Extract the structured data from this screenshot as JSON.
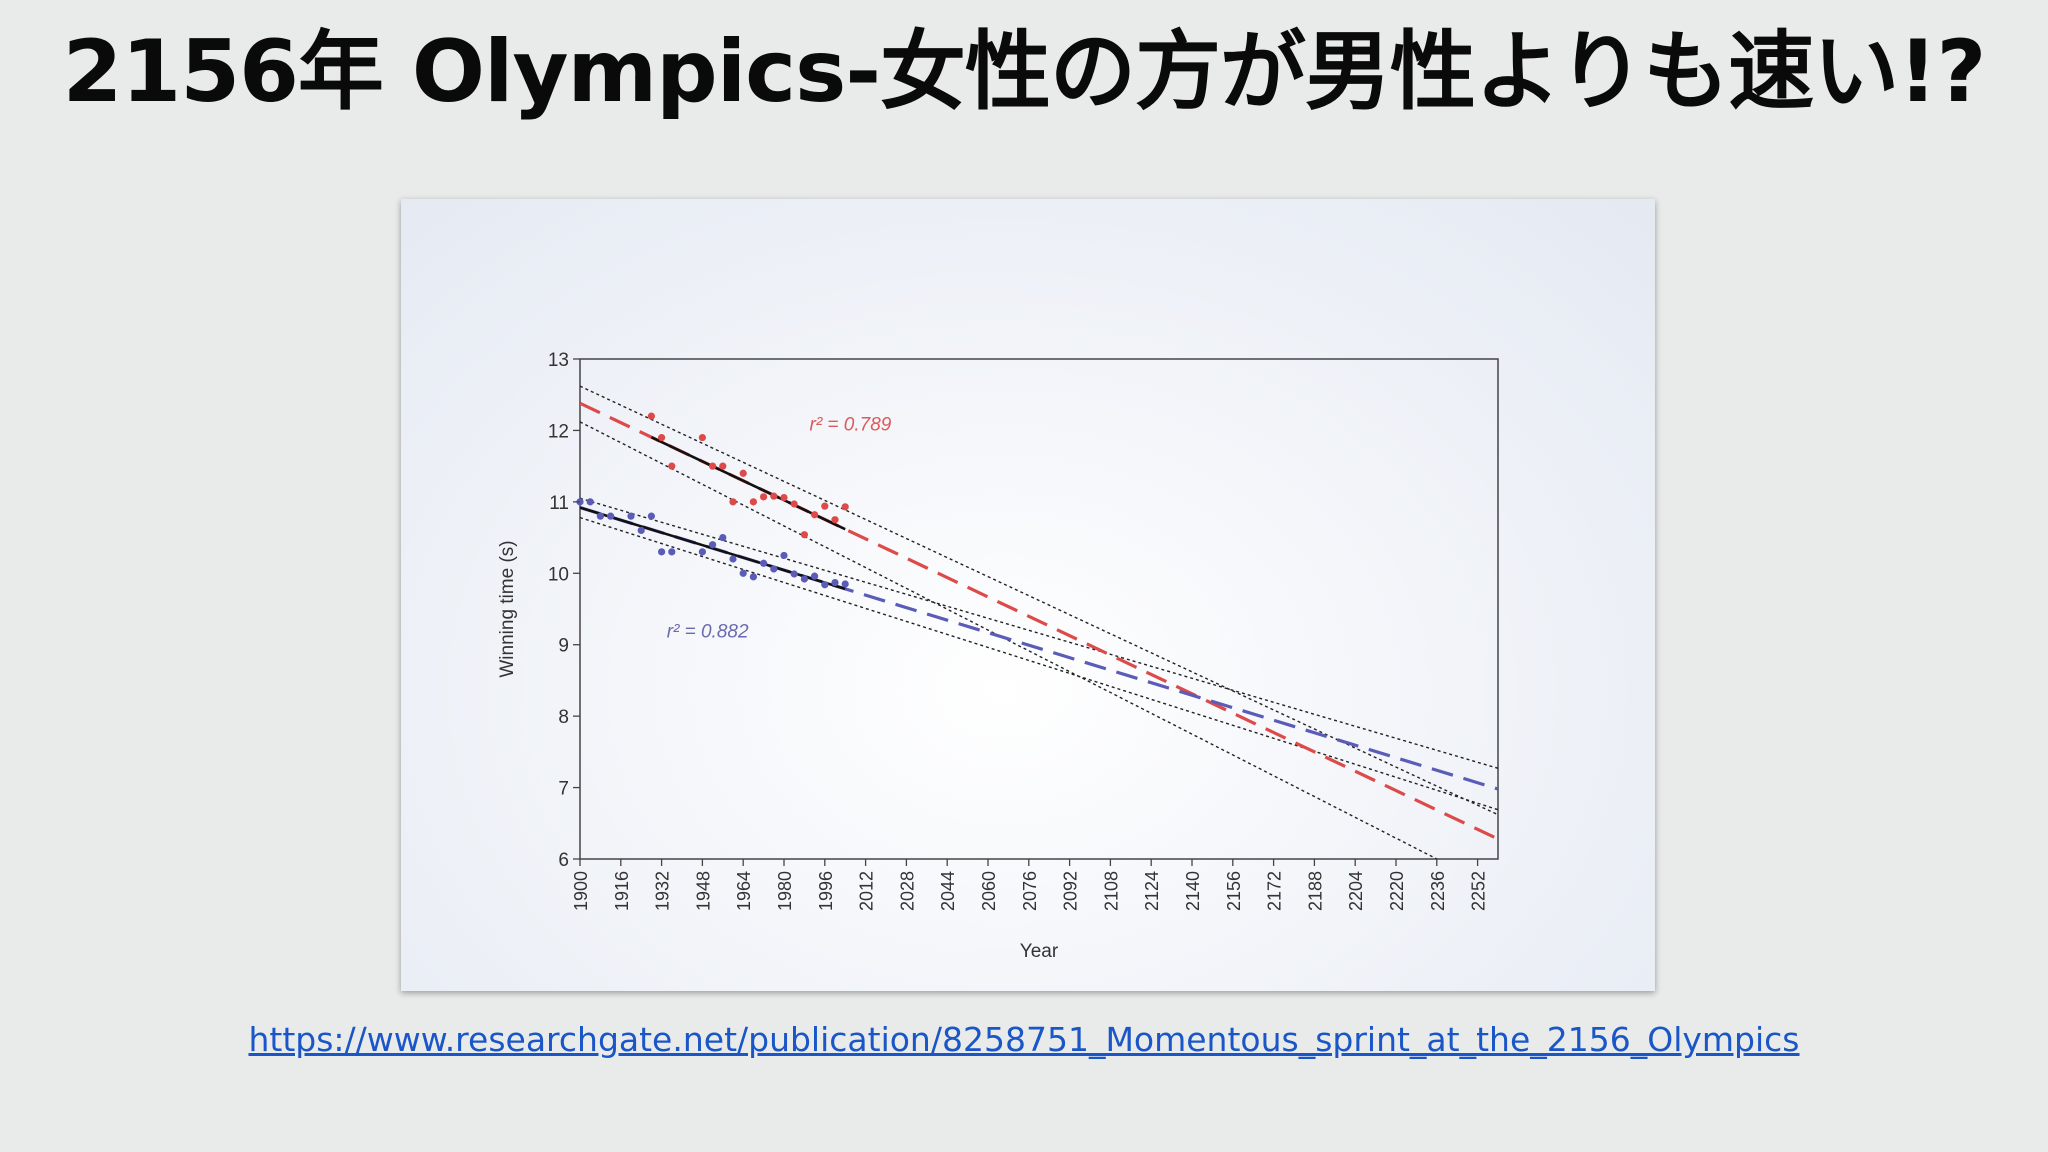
{
  "slide": {
    "title": "2156年 Olympics-女性の方が男性よりも速い!?",
    "source_link": "https://www.researchgate.net/publication/8258751_Momentous_sprint_at_the_2156_Olympics"
  },
  "colors": {
    "men": "#5b5bb8",
    "women": "#dd4a4a",
    "men_label": "#6a6ab0",
    "women_label": "#dd5a5a"
  },
  "chart_data": {
    "type": "scatter",
    "xlabel": "Year",
    "ylabel": "Winning time (s)",
    "xlim": [
      1900,
      2260
    ],
    "ylim": [
      6,
      13
    ],
    "xticks": [
      1900,
      1916,
      1932,
      1948,
      1964,
      1980,
      1996,
      2012,
      2028,
      2044,
      2060,
      2076,
      2092,
      2108,
      2124,
      2140,
      2156,
      2172,
      2188,
      2204,
      2220,
      2236,
      2252
    ],
    "yticks": [
      6,
      7,
      8,
      9,
      10,
      11,
      12,
      13
    ],
    "grid": false,
    "series": [
      {
        "key": "women",
        "r2_label": "r² = 0.789",
        "r2_anchor": [
          1990,
          12.0
        ],
        "points": [
          [
            1928,
            12.2
          ],
          [
            1932,
            11.9
          ],
          [
            1936,
            11.5
          ],
          [
            1948,
            11.9
          ],
          [
            1952,
            11.5
          ],
          [
            1956,
            11.5
          ],
          [
            1960,
            11.0
          ],
          [
            1964,
            11.4
          ],
          [
            1968,
            11.0
          ],
          [
            1972,
            11.07
          ],
          [
            1976,
            11.08
          ],
          [
            1980,
            11.06
          ],
          [
            1984,
            10.97
          ],
          [
            1988,
            10.54
          ],
          [
            1992,
            10.82
          ],
          [
            1996,
            10.94
          ],
          [
            2000,
            10.75
          ],
          [
            2004,
            10.93
          ]
        ],
        "trend": [
          [
            1900,
            12.38
          ],
          [
            2260,
            6.28
          ]
        ],
        "ci_upper": [
          [
            1900,
            12.62
          ],
          [
            2260,
            6.62
          ]
        ],
        "ci_lower": [
          [
            1900,
            12.12
          ],
          [
            2236,
            6.0
          ]
        ]
      },
      {
        "key": "men",
        "r2_label": "r² = 0.882",
        "r2_anchor": [
          1934,
          9.1
        ],
        "points": [
          [
            1900,
            11.0
          ],
          [
            1904,
            11.0
          ],
          [
            1908,
            10.8
          ],
          [
            1912,
            10.8
          ],
          [
            1920,
            10.8
          ],
          [
            1924,
            10.6
          ],
          [
            1928,
            10.8
          ],
          [
            1932,
            10.3
          ],
          [
            1936,
            10.3
          ],
          [
            1948,
            10.3
          ],
          [
            1952,
            10.4
          ],
          [
            1956,
            10.5
          ],
          [
            1960,
            10.2
          ],
          [
            1964,
            10.0
          ],
          [
            1968,
            9.95
          ],
          [
            1972,
            10.14
          ],
          [
            1976,
            10.06
          ],
          [
            1980,
            10.25
          ],
          [
            1984,
            9.99
          ],
          [
            1988,
            9.92
          ],
          [
            1992,
            9.96
          ],
          [
            1996,
            9.84
          ],
          [
            2000,
            9.87
          ],
          [
            2004,
            9.85
          ]
        ],
        "trend": [
          [
            1900,
            10.92
          ],
          [
            2260,
            6.98
          ]
        ],
        "ci_upper": [
          [
            1900,
            11.05
          ],
          [
            2260,
            7.27
          ]
        ],
        "ci_lower": [
          [
            1900,
            10.78
          ],
          [
            2260,
            6.69
          ]
        ]
      }
    ]
  }
}
